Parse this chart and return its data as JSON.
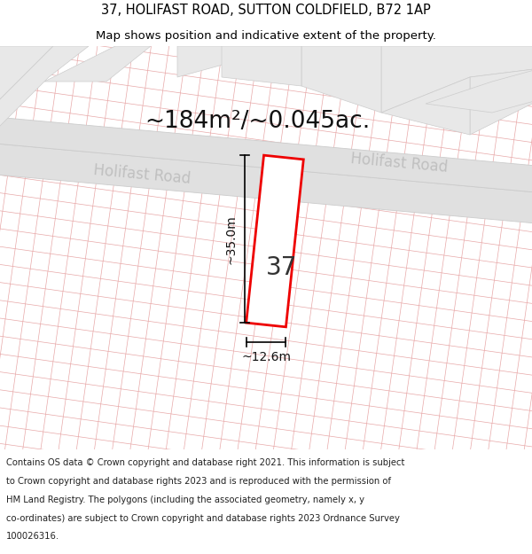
{
  "title_line1": "37, HOLIFAST ROAD, SUTTON COLDFIELD, B72 1AP",
  "title_line2": "Map shows position and indicative extent of the property.",
  "area_label": "~184m²/~0.045ac.",
  "number_label": "37",
  "dim_height": "~35.0m",
  "dim_width": "~12.6m",
  "road_label1": "Holifast Road",
  "road_label2": "Holifast Road",
  "footer_lines": [
    "Contains OS data © Crown copyright and database right 2021. This information is subject",
    "to Crown copyright and database rights 2023 and is reproduced with the permission of",
    "HM Land Registry. The polygons (including the associated geometry, namely x, y",
    "co-ordinates) are subject to Crown copyright and database rights 2023 Ordnance Survey",
    "100026316."
  ],
  "map_bg": "#f2f2f2",
  "road_color": "#e0e0e0",
  "road_edge_color": "#cccccc",
  "grid_line_color": "#e8a8a8",
  "block_color": "#e8e8e8",
  "block_edge_color": "#cccccc",
  "property_line_color": "#ee0000",
  "property_fill": "#ffffff",
  "title_fontsize": 10.5,
  "subtitle_fontsize": 9.5,
  "area_fontsize": 19,
  "number_fontsize": 20,
  "dim_fontsize": 10,
  "road_fontsize": 12,
  "footer_fontsize": 7.2
}
